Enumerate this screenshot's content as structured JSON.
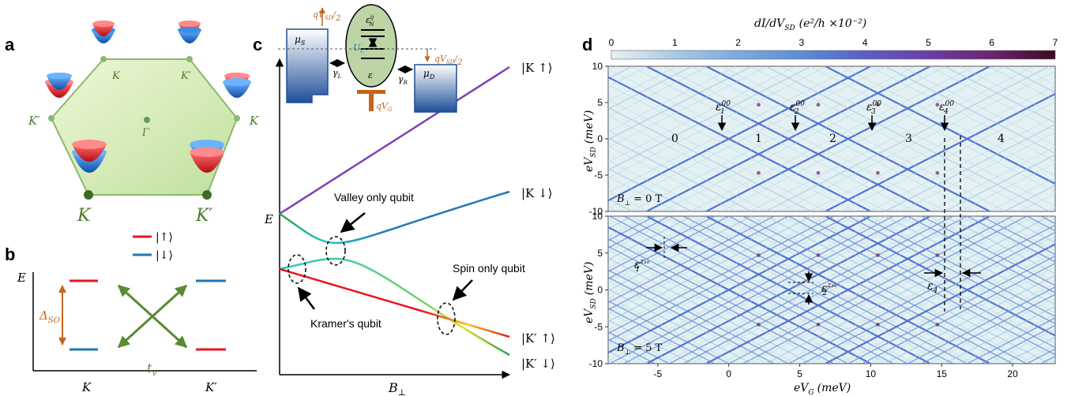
{
  "panels": {
    "a": "a",
    "b": "b",
    "c": "c",
    "d": "d"
  },
  "panel_a": {
    "points": {
      "K_small_left": "K",
      "K_prime_small_top": "K′",
      "K_prime_left": "K′",
      "K_right": "K",
      "gamma": "Γ",
      "K_big": "K",
      "K_prime_big": "K′"
    }
  },
  "panel_b": {
    "legend_up": "|↑⟩",
    "legend_down": "|↓⟩",
    "ylabel": "E",
    "delta": "Δ",
    "delta_sub": "SO",
    "tv": "t",
    "tv_sub": "v",
    "xtick_K": "K",
    "xtick_Kp": "K′",
    "colors": {
      "up": "#e8161f",
      "down": "#1f77b4",
      "arrow": "#5a8a32",
      "delta_arrow": "#c5651b"
    }
  },
  "panel_c": {
    "ylabel": "E",
    "xlabel": "B",
    "xlabel_sub": "⊥",
    "state_labels": [
      "|K ↑⟩",
      "|K ↓⟩",
      "|K′ ↑⟩",
      "|K′ ↓⟩"
    ],
    "annotations": [
      "Valley only qubit",
      "Kramer's qubit",
      "Spin only qubit"
    ],
    "inset": {
      "muS": "μ",
      "muS_sub": "S",
      "muD": "μ",
      "muD_sub": "D",
      "gammaL": "γ",
      "gammaL_sub": "L",
      "gammaR": "γ",
      "gammaR_sub": "R",
      "Uc": "U",
      "Uc_sub": "C",
      "eps": "ε",
      "epsN": "ε",
      "epsN_sup": "ij",
      "epsN_sub": "N",
      "qVg": "qV",
      "qVg_sub": "G",
      "qVsd": "qV",
      "qVsd_sub": "SD",
      "half": "2"
    },
    "colors": {
      "Kup": "#7e3fb5",
      "Kdown": "#2378b4",
      "dot": "#bcd4a6",
      "gate": "#c5651b"
    }
  },
  "panel_d": {
    "colorbar": {
      "title": "dI/dV",
      "title_sub": "SD",
      "title_units": "(e²/h ×10⁻²)",
      "ticks": [
        "0",
        "1",
        "2",
        "3",
        "4",
        "5",
        "6",
        "7"
      ],
      "min": 0,
      "max": 7,
      "colors": [
        "#e6f1f3",
        "#a9cbe4",
        "#5a8ed6",
        "#5b5fc6",
        "#6b3fa9",
        "#6a2370",
        "#3a0b1f"
      ]
    },
    "top": {
      "field": "B",
      "field_sub": "⊥",
      "field_value": "= 0 T",
      "regions": [
        "0",
        "1",
        "2",
        "3",
        "4"
      ],
      "peaks": [
        {
          "label": "ε",
          "sup": "00",
          "sub": "1"
        },
        {
          "label": "ε",
          "sup": "00",
          "sub": "2"
        },
        {
          "label": "ε",
          "sup": "00",
          "sub": "3"
        },
        {
          "label": "ε",
          "sup": "00",
          "sub": "4"
        }
      ]
    },
    "bottom": {
      "field": "B",
      "field_sub": "⊥",
      "field_value": "= 5 T",
      "marks": [
        {
          "label": "ε",
          "sub": "1",
          "sup": "z₁₀"
        },
        {
          "label": "ε",
          "sub": "2",
          "sup": "z₁₀"
        },
        {
          "label": "ε",
          "sub": "4",
          "sup": ""
        }
      ]
    },
    "ylabel": "eV",
    "ylabel_sub": "SD",
    "ylabel_units": "(meV)",
    "xlabel": "eV",
    "xlabel_sub": "G",
    "xlabel_units": "(meV)",
    "yticks": [
      "10",
      "5",
      "0",
      "-5",
      "-10"
    ],
    "xticks": [
      "-5",
      "0",
      "5",
      "10",
      "15",
      "20"
    ],
    "xlim": [
      -8.5,
      23
    ],
    "ylim": [
      -10,
      10
    ],
    "diamond_edges_meV": [
      0,
      4.2,
      8.4,
      12.6,
      16.8
    ],
    "charging_period_meV": 4.2
  }
}
